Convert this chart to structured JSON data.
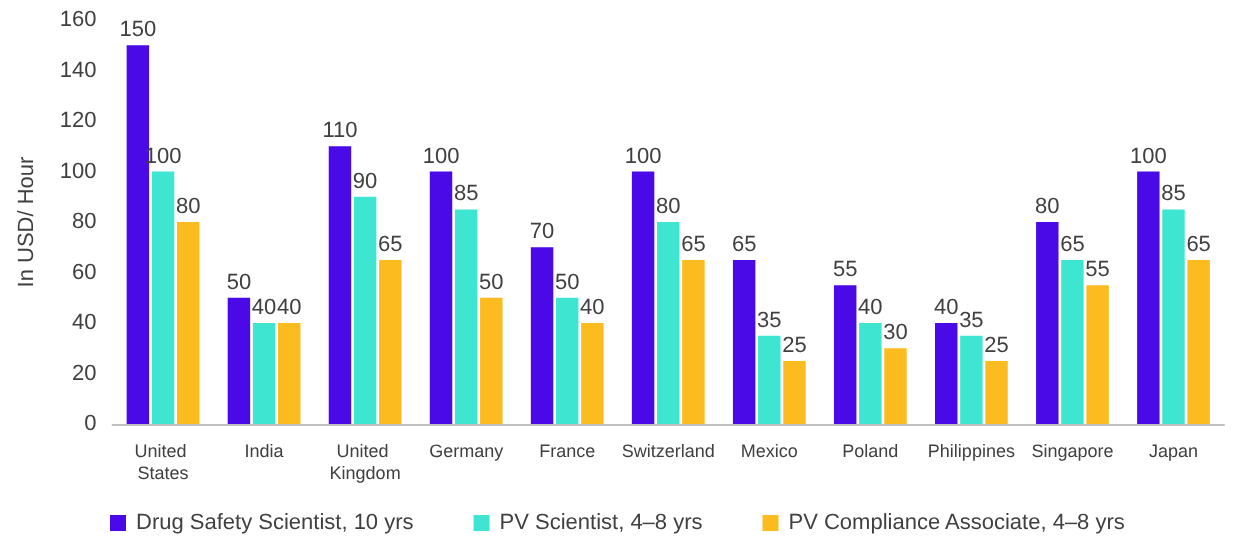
{
  "chart_data": {
    "type": "bar",
    "ylabel": "In USD/ Hour",
    "categories": [
      "United States",
      "India",
      "United Kingdom",
      "Germany",
      "France",
      "Switzerland",
      "Mexico",
      "Poland",
      "Philippines",
      "Singapore",
      "Japan"
    ],
    "series": [
      {
        "name": "Drug Safety Scientist, 10 yrs",
        "color": "#4a0ae8",
        "values": [
          150,
          50,
          110,
          100,
          70,
          100,
          65,
          55,
          40,
          80,
          100
        ]
      },
      {
        "name": "PV Scientist, 4–8 yrs",
        "color": "#3ee6d2",
        "values": [
          100,
          40,
          90,
          85,
          50,
          80,
          35,
          40,
          35,
          65,
          85
        ]
      },
      {
        "name": "PV Compliance Associate, 4–8 yrs",
        "color": "#fcbb1e",
        "values": [
          80,
          40,
          65,
          50,
          40,
          65,
          25,
          30,
          25,
          55,
          65
        ]
      }
    ],
    "ylim": [
      0,
      160
    ],
    "yticks": [
      0,
      20,
      40,
      60,
      80,
      100,
      120,
      140,
      160
    ],
    "data_labels": true,
    "grid": false,
    "legend": "bottom"
  }
}
